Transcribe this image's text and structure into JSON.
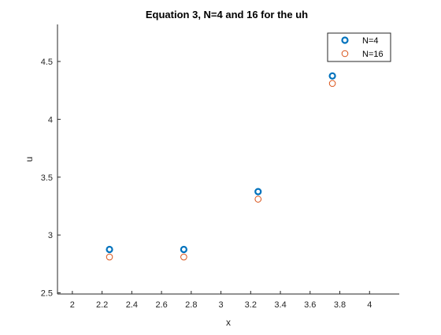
{
  "colors": {
    "series_n4": "#0072BD",
    "series_n16": "#D95319",
    "axis": "#262626",
    "background": "#ffffff"
  },
  "chart_data": {
    "type": "scatter",
    "title": "Equation 3, N=4 and 16 for the uh",
    "xlabel": "x",
    "ylabel": "u",
    "xlim": [
      1.9,
      4.2
    ],
    "ylim": [
      2.49,
      4.82
    ],
    "xticks": [
      "2",
      "2.2",
      "2.4",
      "2.6",
      "2.8",
      "3",
      "3.2",
      "3.4",
      "3.6",
      "3.8",
      "4"
    ],
    "yticks": [
      "2.5",
      "3",
      "3.5",
      "4",
      "4.5"
    ],
    "grid": false,
    "legend_position": "top-right",
    "series": [
      {
        "name": "N=4",
        "marker": "circle-thick",
        "x": [
          2.25,
          2.75,
          3.25,
          3.75
        ],
        "y": [
          2.875,
          2.875,
          3.375,
          4.375
        ]
      },
      {
        "name": "N=16",
        "marker": "circle-thin",
        "x": [
          2.25,
          2.75,
          3.25,
          3.75
        ],
        "y": [
          2.81,
          2.81,
          3.31,
          4.31
        ]
      }
    ]
  }
}
